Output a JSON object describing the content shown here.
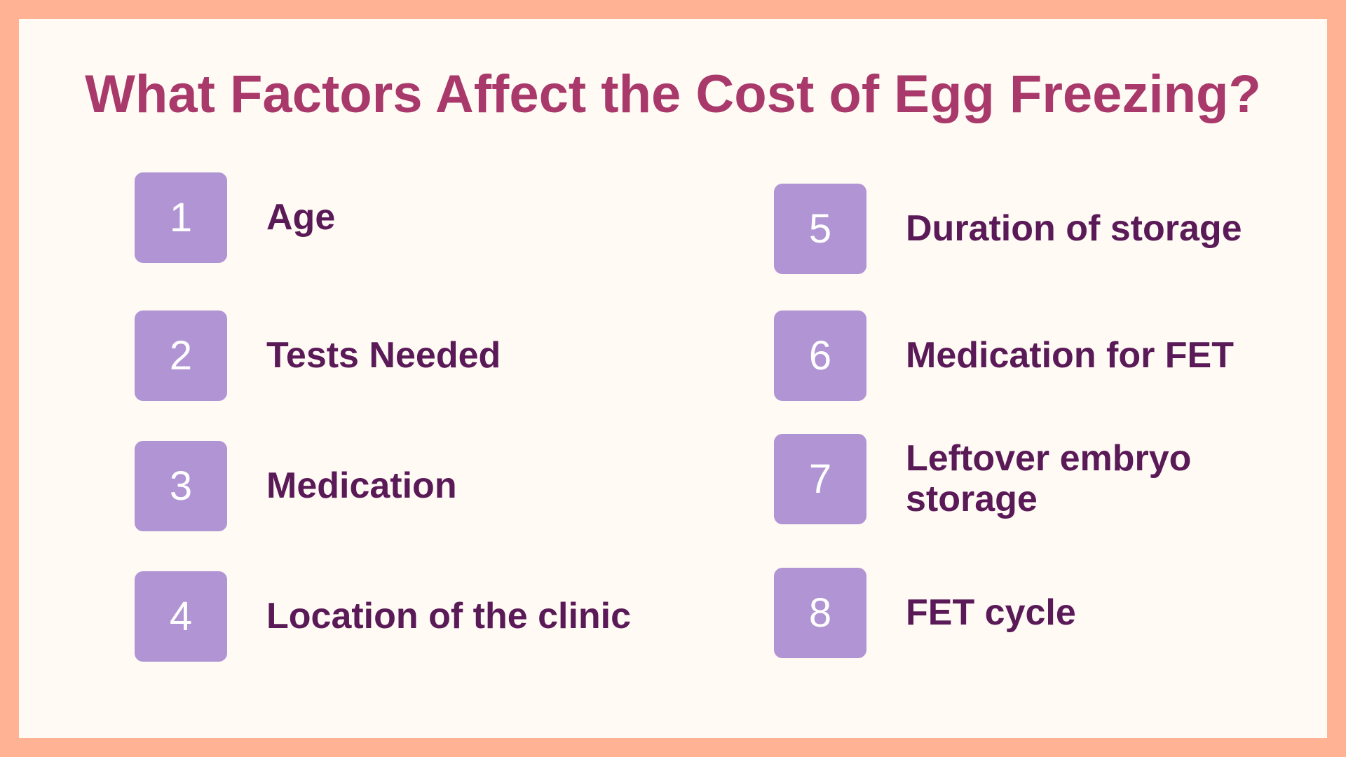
{
  "title": "What Factors Affect the Cost of Egg Freezing?",
  "items": [
    {
      "number": 1,
      "label": "Age"
    },
    {
      "number": 2,
      "label": "Tests Needed"
    },
    {
      "number": 3,
      "label": "Medication"
    },
    {
      "number": 4,
      "label": "Location of the clinic"
    },
    {
      "number": 5,
      "label": "Duration of storage"
    },
    {
      "number": 6,
      "label": "Medication for FET"
    },
    {
      "number": 7,
      "label": "Leftover embryo storage"
    },
    {
      "number": 8,
      "label": "FET cycle"
    }
  ]
}
